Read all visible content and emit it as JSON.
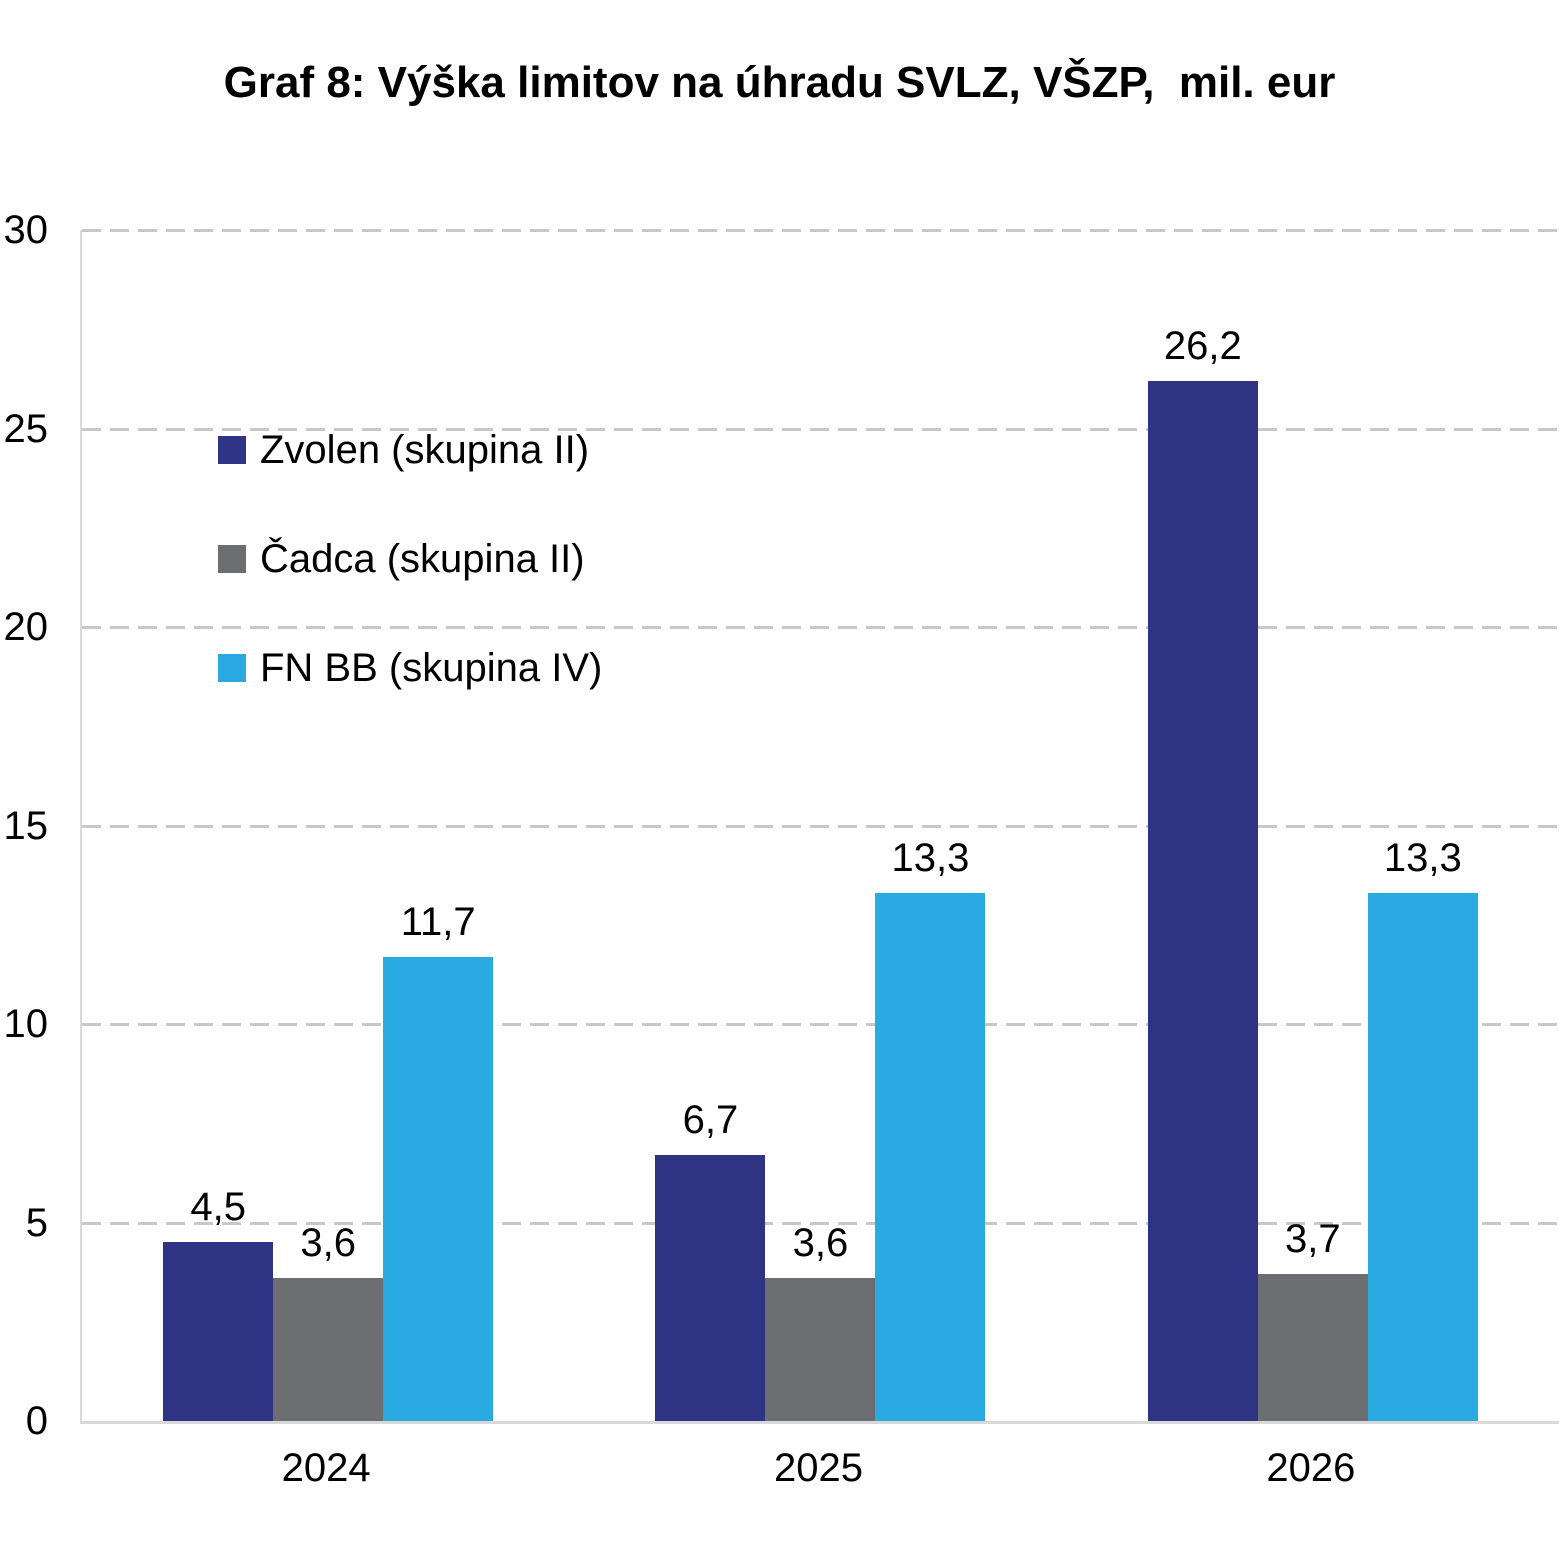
{
  "chart_data": {
    "type": "bar",
    "title": "Graf 8: Výška limitov na úhradu SVLZ, VŠZP,  mil. eur",
    "categories": [
      "2024",
      "2025",
      "2026"
    ],
    "series": [
      {
        "name": "Zvolen (skupina II)",
        "color": "#2e3384",
        "values": [
          4.5,
          6.7,
          26.2
        ],
        "labels": [
          "4,5",
          "6,7",
          "26,2"
        ]
      },
      {
        "name": "Čadca (skupina II)",
        "color": "#6c6e72",
        "values": [
          3.6,
          3.6,
          3.7
        ],
        "labels": [
          "3,6",
          "3,6",
          "3,7"
        ]
      },
      {
        "name": "FN BB (skupina IV)",
        "color": "#29abe2",
        "values": [
          11.7,
          13.3,
          13.3
        ],
        "labels": [
          "11,7",
          "13,3",
          "13,3"
        ]
      }
    ],
    "xlabel": "",
    "ylabel": "",
    "ylim": [
      0,
      30
    ],
    "yticks": [
      0,
      5,
      10,
      15,
      20,
      25,
      30
    ],
    "grid": "horizontal-dashed",
    "legend_position": "inside-upper-left",
    "gridline_color": "#c8c8c8",
    "axis_line_color": "#d9d9d9",
    "decimal_separator": ","
  }
}
